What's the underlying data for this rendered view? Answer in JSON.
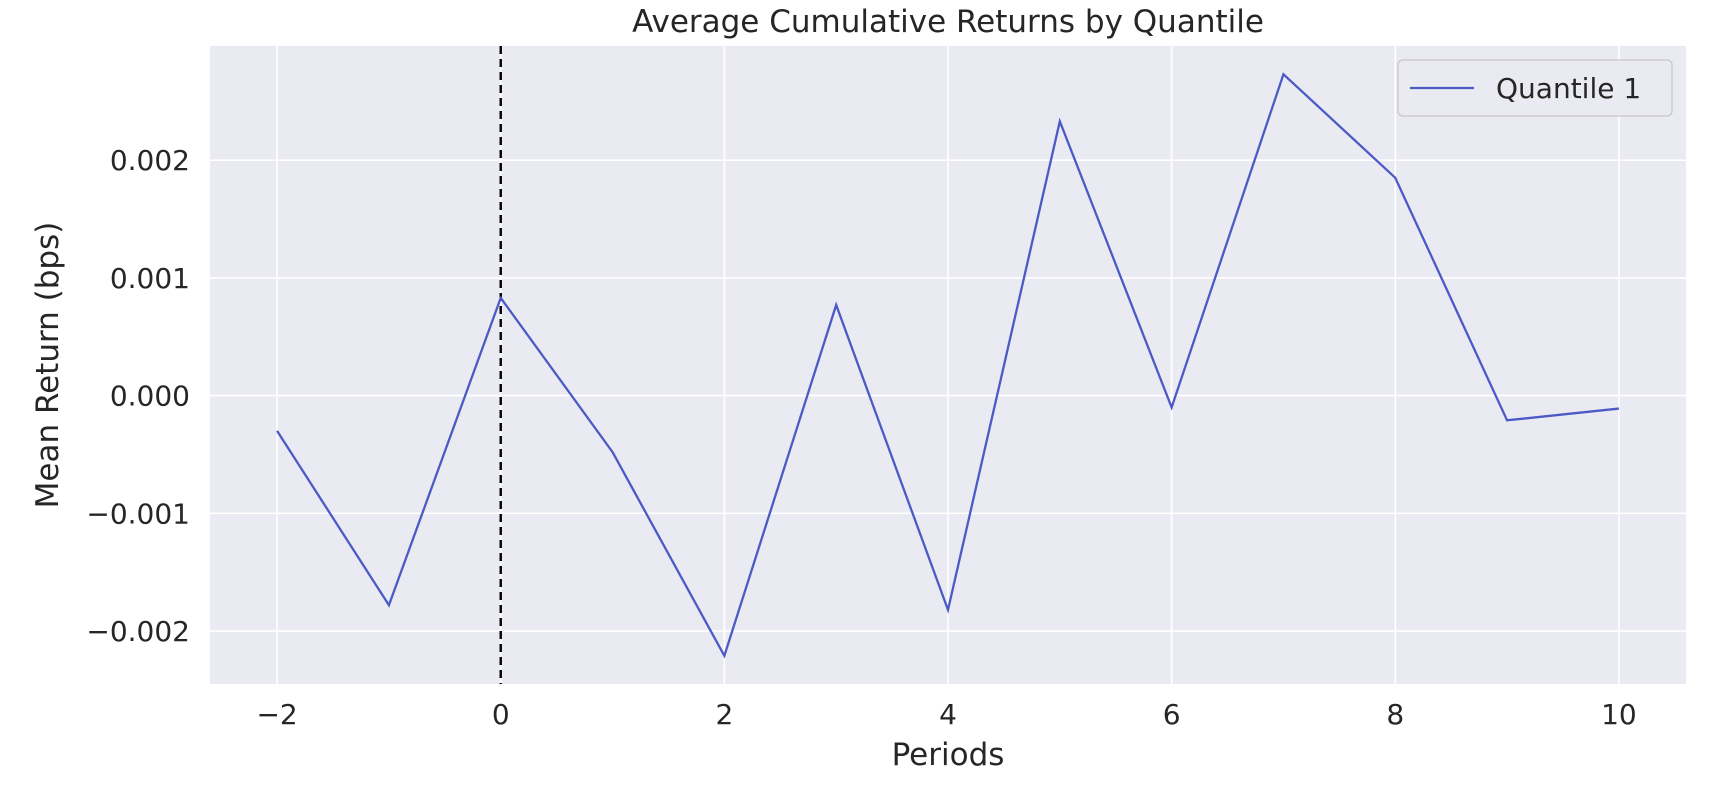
{
  "chart_data": {
    "type": "line",
    "title": "Average Cumulative Returns by Quantile",
    "xlabel": "Periods",
    "ylabel": "Mean Return (bps)",
    "x": [
      -2,
      -1,
      0,
      1,
      2,
      3,
      4,
      5,
      6,
      7,
      8,
      9,
      10
    ],
    "series": [
      {
        "name": "Quantile 1",
        "color": "#4c5ac6",
        "values": [
          -0.0003,
          -0.00178,
          0.00083,
          -0.00048,
          -0.00221,
          0.00077,
          -0.00182,
          0.00233,
          -0.0001,
          0.00273,
          0.00185,
          -0.00021,
          -0.00011
        ]
      }
    ],
    "xlim": [
      -2.6,
      10.6
    ],
    "ylim": [
      -0.00245,
      0.00297
    ],
    "xticks": [
      -2,
      0,
      2,
      4,
      6,
      8,
      10
    ],
    "xtick_labels": [
      "−2",
      "0",
      "2",
      "4",
      "6",
      "8",
      "10"
    ],
    "yticks": [
      -0.002,
      -0.001,
      0.0,
      0.001,
      0.002
    ],
    "ytick_labels": [
      "−0.002",
      "−0.001",
      "0.000",
      "0.001",
      "0.002"
    ],
    "vline": {
      "x": 0,
      "style": "dashed",
      "color": "#000000"
    },
    "grid": true,
    "legend_position": "top-right",
    "background_color": "#eaeaf2",
    "grid_color": "#ffffff"
  }
}
